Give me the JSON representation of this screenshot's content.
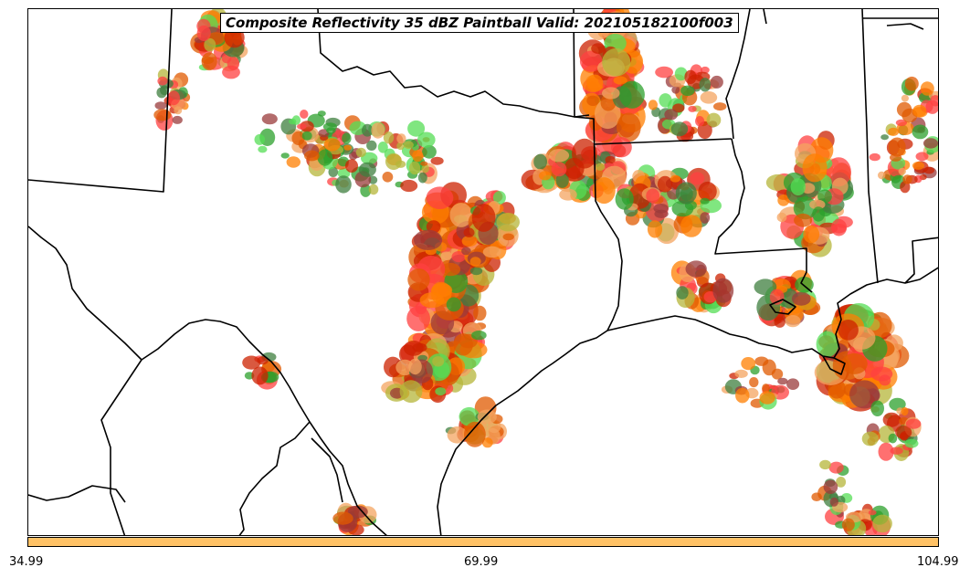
{
  "title": "Composite Reflectivity 35 dBZ Paintball Valid: 202105182100f003",
  "colorbar": {
    "color": "#ffc266",
    "ticks": [
      "34.99",
      "69.99",
      "104.99"
    ]
  },
  "colors": {
    "member_palette": [
      "#ff7f00",
      "#cc2200",
      "#2ca02c",
      "#55dd55",
      "#9a3b3b",
      "#f4a460",
      "#b5b53a",
      "#3f7f3f",
      "#ff4040",
      "#e05a00"
    ],
    "boundaries": "#000000",
    "background": "#ffffff"
  }
}
